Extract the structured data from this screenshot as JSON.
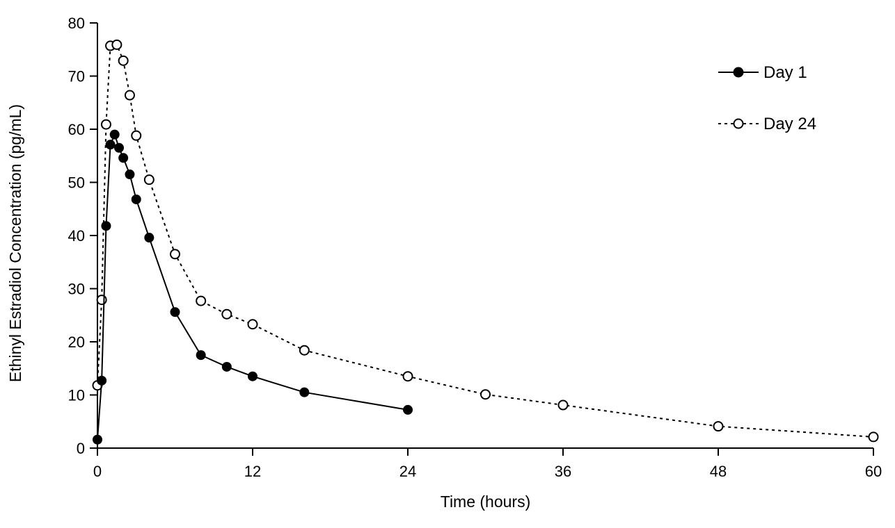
{
  "figure": {
    "background_color": "#ffffff",
    "line_color": "#000000"
  },
  "chart_data": {
    "type": "line",
    "title": "",
    "xlabel": "Time (hours)",
    "ylabel": "Ethinyl Estradiol Concentration (pg/mL)",
    "xlim": [
      0,
      60
    ],
    "ylim": [
      0,
      80
    ],
    "xticks": [
      0,
      12,
      24,
      36,
      48,
      60
    ],
    "yticks": [
      0,
      10,
      20,
      30,
      40,
      50,
      60,
      70,
      80
    ],
    "grid": false,
    "legend_position": "top-right",
    "series": [
      {
        "name": "Day 24",
        "line_style": "dashed",
        "marker": "open-circle",
        "color": "#000000",
        "x": [
          0,
          0.33,
          0.67,
          1,
          1.5,
          2,
          2.5,
          3,
          4,
          6,
          8,
          10,
          12,
          16,
          24,
          30,
          36,
          48,
          60
        ],
        "y": [
          11.8,
          27.9,
          60.9,
          75.7,
          75.9,
          72.9,
          66.4,
          58.8,
          50.5,
          36.5,
          27.7,
          25.2,
          23.3,
          18.4,
          13.5,
          10.1,
          8.1,
          4.1,
          2.1
        ]
      },
      {
        "name": "Day 1",
        "line_style": "solid",
        "marker": "filled-circle",
        "color": "#000000",
        "x": [
          0,
          0.33,
          0.67,
          1,
          1.33,
          1.67,
          2,
          2.5,
          3,
          4,
          6,
          8,
          10,
          12,
          16,
          24
        ],
        "y": [
          1.6,
          12.7,
          41.8,
          57.1,
          59.0,
          56.5,
          54.6,
          51.5,
          46.8,
          39.6,
          25.6,
          17.5,
          15.3,
          13.5,
          10.5,
          7.2
        ]
      }
    ],
    "legend": [
      {
        "label": "Day 1",
        "line_style": "solid",
        "marker": "filled-circle"
      },
      {
        "label": "Day 24",
        "line_style": "dashed",
        "marker": "open-circle"
      }
    ]
  }
}
